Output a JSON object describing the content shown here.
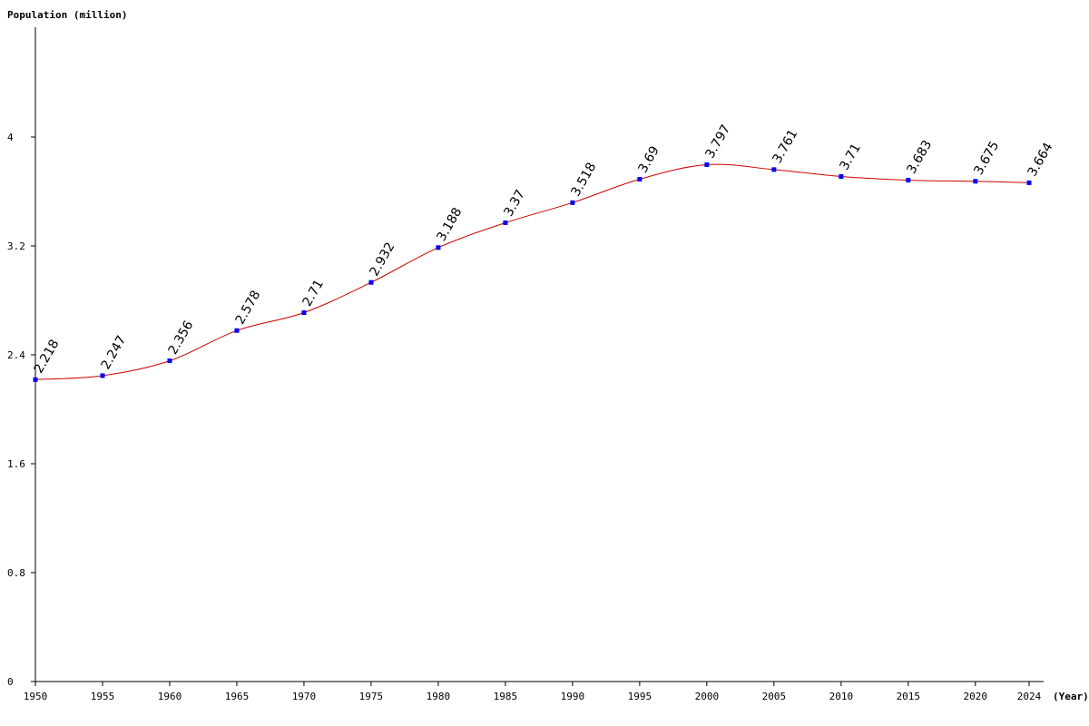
{
  "chart_data": {
    "type": "line",
    "ylabel": "Population (million)",
    "xlabel": "(Year)",
    "x": [
      1950,
      1955,
      1960,
      1965,
      1970,
      1975,
      1980,
      1985,
      1990,
      1995,
      2000,
      2005,
      2010,
      2015,
      2020,
      2024
    ],
    "series": [
      {
        "values": [
          2.218,
          2.247,
          2.356,
          2.578,
          2.71,
          2.932,
          3.188,
          3.37,
          3.518,
          3.69,
          3.797,
          3.761,
          3.71,
          3.683,
          3.675,
          3.664
        ],
        "labels": [
          "2.218",
          "2.247",
          "2.356",
          "2.578",
          "2.71",
          "2.932",
          "3.188",
          "3.37",
          "3.518",
          "3.69",
          "3.797",
          "3.761",
          "3.71",
          "3.683",
          "3.675",
          "3.664"
        ]
      }
    ],
    "xticks": [
      "1950",
      "1955",
      "1960",
      "1965",
      "1970",
      "1975",
      "1980",
      "1985",
      "1990",
      "1995",
      "2000",
      "2005",
      "2010",
      "2015",
      "2020",
      "2024"
    ],
    "yticks": [
      {
        "value": 0,
        "label": "0"
      },
      {
        "value": 0.8,
        "label": "0.8"
      },
      {
        "value": 1.6,
        "label": "1.6"
      },
      {
        "value": 2.4,
        "label": "2.4"
      },
      {
        "value": 3.2,
        "label": "3.2"
      },
      {
        "value": 4,
        "label": "4"
      }
    ],
    "ylim": [
      0,
      4.8
    ],
    "xlim": [
      1950,
      2024
    ],
    "grid": false,
    "colors": {
      "line": "#cc0000",
      "marker": "#0000ff",
      "axis": "#000000"
    }
  }
}
